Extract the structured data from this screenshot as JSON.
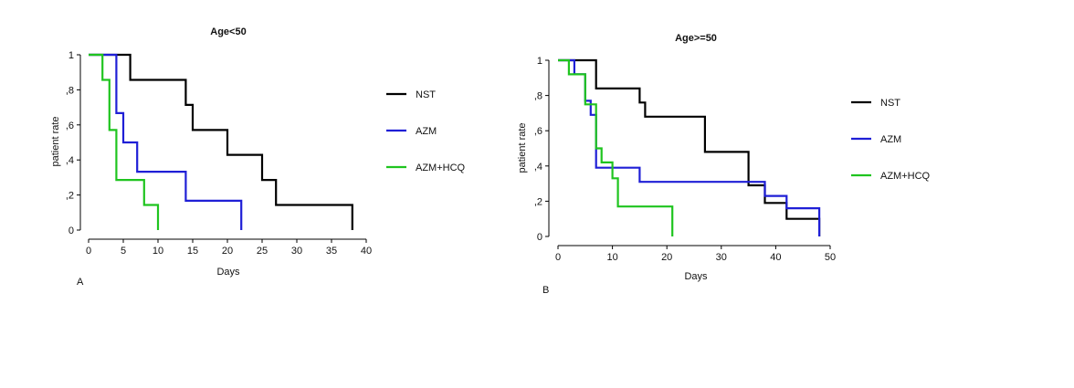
{
  "chart_data": [
    {
      "type": "line",
      "step": true,
      "panel_label": "A",
      "title": "Age<50",
      "xlabel": "Days",
      "ylabel": "patient rate",
      "xlim": [
        0,
        40
      ],
      "ylim": [
        0,
        1
      ],
      "x_ticks": [
        0,
        5,
        10,
        15,
        20,
        25,
        30,
        35,
        40
      ],
      "y_ticks": [
        0,
        0.2,
        0.4,
        0.6,
        0.8,
        1
      ],
      "y_tick_labels": [
        "0",
        ",2",
        ",4",
        ",6",
        ",8",
        "1"
      ],
      "legend_position": "right",
      "grid": false,
      "series": [
        {
          "name": "NST",
          "color": "#000000",
          "points": [
            [
              0,
              1
            ],
            [
              6,
              1
            ],
            [
              6,
              0.857
            ],
            [
              14,
              0.857
            ],
            [
              14,
              0.714
            ],
            [
              15,
              0.714
            ],
            [
              15,
              0.571
            ],
            [
              20,
              0.571
            ],
            [
              20,
              0.429
            ],
            [
              25,
              0.429
            ],
            [
              25,
              0.286
            ],
            [
              27,
              0.286
            ],
            [
              27,
              0.143
            ],
            [
              38,
              0.143
            ],
            [
              38,
              0
            ]
          ]
        },
        {
          "name": "AZM",
          "color": "#1f1fd6",
          "points": [
            [
              0,
              1
            ],
            [
              4,
              1
            ],
            [
              4,
              0.667
            ],
            [
              5,
              0.667
            ],
            [
              5,
              0.5
            ],
            [
              7,
              0.5
            ],
            [
              7,
              0.333
            ],
            [
              14,
              0.333
            ],
            [
              14,
              0.167
            ],
            [
              22,
              0.167
            ],
            [
              22,
              0
            ]
          ]
        },
        {
          "name": "AZM+HCQ",
          "color": "#1fc41f",
          "points": [
            [
              0,
              1
            ],
            [
              2,
              1
            ],
            [
              2,
              0.857
            ],
            [
              3,
              0.857
            ],
            [
              3,
              0.571
            ],
            [
              4,
              0.571
            ],
            [
              4,
              0.286
            ],
            [
              8,
              0.286
            ],
            [
              8,
              0.143
            ],
            [
              10,
              0.143
            ],
            [
              10,
              0
            ]
          ]
        }
      ]
    },
    {
      "type": "line",
      "step": true,
      "panel_label": "B",
      "title": "Age>=50",
      "xlabel": "Days",
      "ylabel": "patient rate",
      "xlim": [
        0,
        50
      ],
      "ylim": [
        0,
        1
      ],
      "x_ticks": [
        0,
        10,
        20,
        30,
        40,
        50
      ],
      "y_ticks": [
        0,
        0.2,
        0.4,
        0.6,
        0.8,
        1
      ],
      "y_tick_labels": [
        "0",
        ",2",
        ",4",
        ",6",
        ",8",
        "1"
      ],
      "legend_position": "right",
      "grid": false,
      "series": [
        {
          "name": "NST",
          "color": "#000000",
          "points": [
            [
              0,
              1
            ],
            [
              7,
              1
            ],
            [
              7,
              0.84
            ],
            [
              15,
              0.84
            ],
            [
              15,
              0.76
            ],
            [
              16,
              0.76
            ],
            [
              16,
              0.68
            ],
            [
              27,
              0.68
            ],
            [
              27,
              0.48
            ],
            [
              35,
              0.48
            ],
            [
              35,
              0.29
            ],
            [
              38,
              0.29
            ],
            [
              38,
              0.19
            ],
            [
              42,
              0.19
            ],
            [
              42,
              0.1
            ],
            [
              48,
              0.1
            ],
            [
              48,
              0
            ]
          ]
        },
        {
          "name": "AZM",
          "color": "#1f1fd6",
          "points": [
            [
              0,
              1
            ],
            [
              3,
              1
            ],
            [
              3,
              0.92
            ],
            [
              5,
              0.92
            ],
            [
              5,
              0.77
            ],
            [
              6,
              0.77
            ],
            [
              6,
              0.69
            ],
            [
              7,
              0.69
            ],
            [
              7,
              0.39
            ],
            [
              15,
              0.39
            ],
            [
              15,
              0.31
            ],
            [
              38,
              0.31
            ],
            [
              38,
              0.23
            ],
            [
              42,
              0.23
            ],
            [
              42,
              0.16
            ],
            [
              48,
              0.16
            ],
            [
              48,
              0
            ]
          ]
        },
        {
          "name": "AZM+HCQ",
          "color": "#1fc41f",
          "points": [
            [
              0,
              1
            ],
            [
              2,
              1
            ],
            [
              2,
              0.92
            ],
            [
              5,
              0.92
            ],
            [
              5,
              0.75
            ],
            [
              7,
              0.75
            ],
            [
              7,
              0.5
            ],
            [
              8,
              0.5
            ],
            [
              8,
              0.42
            ],
            [
              10,
              0.42
            ],
            [
              10,
              0.33
            ],
            [
              11,
              0.33
            ],
            [
              11,
              0.17
            ],
            [
              21,
              0.17
            ],
            [
              21,
              0
            ]
          ]
        }
      ]
    }
  ]
}
